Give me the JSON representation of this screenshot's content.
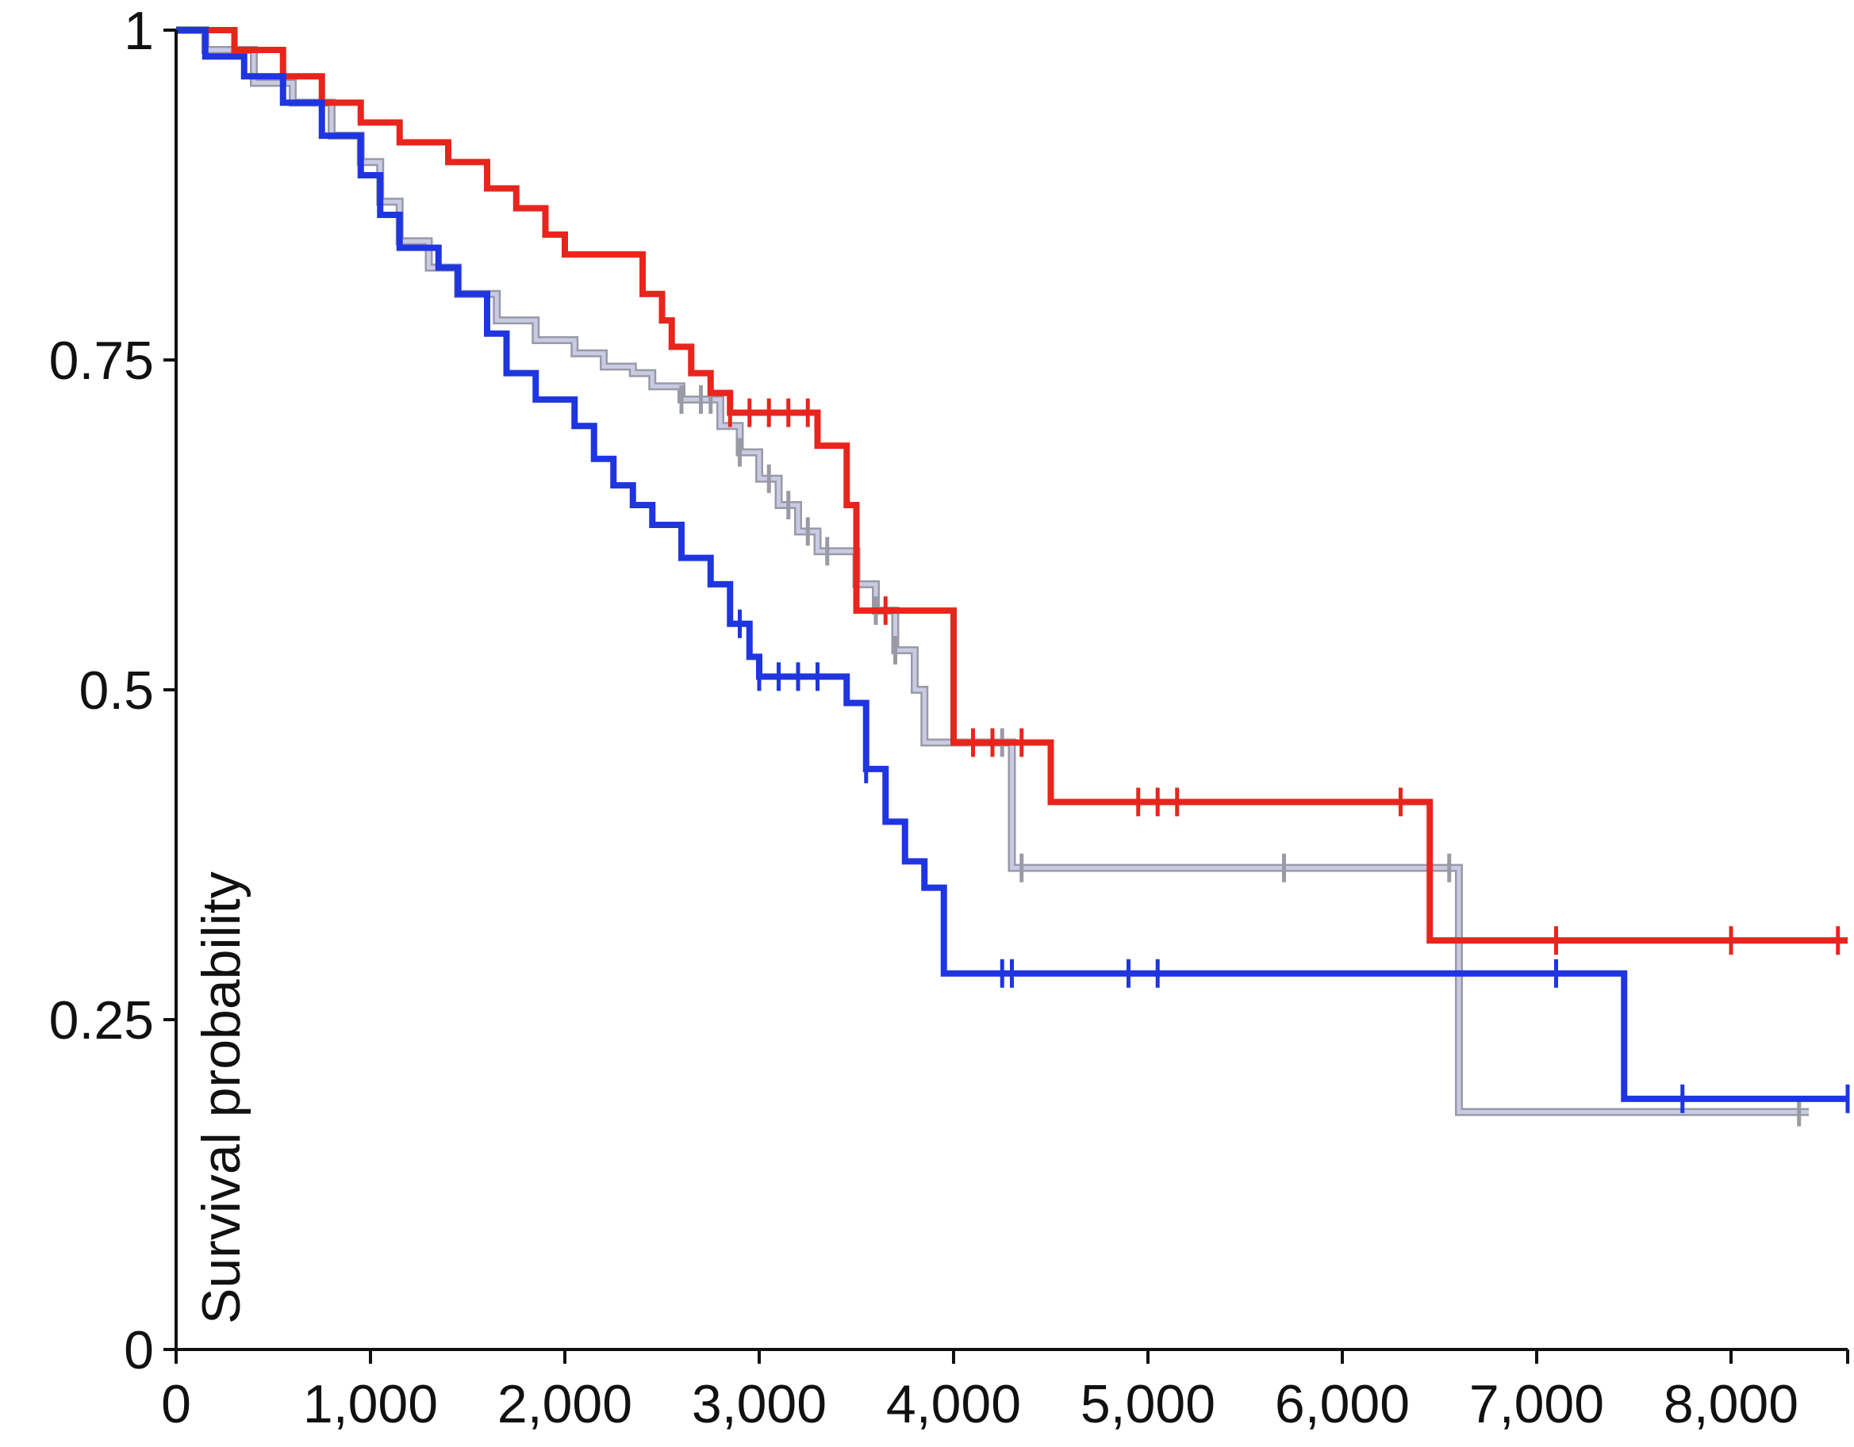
{
  "chart_data": {
    "type": "line",
    "title": "",
    "xlabel": "",
    "ylabel": "Survival probability",
    "xlim": [
      0,
      8600
    ],
    "ylim": [
      0,
      1
    ],
    "x_ticks": [
      0,
      1000,
      2000,
      3000,
      4000,
      5000,
      6000,
      7000,
      8000
    ],
    "x_tick_labels": [
      "0",
      "1,000",
      "2,000",
      "3,000",
      "4,000",
      "5,000",
      "6,000",
      "7,000",
      "8,000"
    ],
    "y_ticks": [
      0,
      0.25,
      0.5,
      0.75,
      1
    ],
    "y_tick_labels": [
      "0",
      "0.25",
      "0.5",
      "0.75",
      "1"
    ],
    "grid": false,
    "legend": "none",
    "series": [
      {
        "color": "#c8cbe3",
        "points": [
          [
            0,
            1
          ],
          [
            150,
            0.985
          ],
          [
            400,
            0.96
          ],
          [
            600,
            0.945
          ],
          [
            800,
            0.92
          ],
          [
            950,
            0.9
          ],
          [
            1050,
            0.87
          ],
          [
            1150,
            0.84
          ],
          [
            1300,
            0.82
          ],
          [
            1450,
            0.8
          ],
          [
            1650,
            0.78
          ],
          [
            1850,
            0.765
          ],
          [
            2050,
            0.755
          ],
          [
            2200,
            0.745
          ],
          [
            2350,
            0.74
          ],
          [
            2450,
            0.73
          ],
          [
            2600,
            0.72
          ],
          [
            2800,
            0.7
          ],
          [
            2900,
            0.68
          ],
          [
            3000,
            0.66
          ],
          [
            3100,
            0.64
          ],
          [
            3200,
            0.62
          ],
          [
            3300,
            0.605
          ],
          [
            3450,
            0.605
          ],
          [
            3500,
            0.58
          ],
          [
            3600,
            0.56
          ],
          [
            3700,
            0.53
          ],
          [
            3800,
            0.5
          ],
          [
            3850,
            0.46
          ],
          [
            4250,
            0.46
          ],
          [
            4300,
            0.365
          ],
          [
            6600,
            0.365
          ],
          [
            6600,
            0.18
          ],
          [
            8400,
            0.18
          ]
        ],
        "censor_x": [
          2600,
          2700,
          2750,
          2900,
          3050,
          3150,
          3250,
          3350,
          3600,
          3700,
          4250,
          4350,
          5700,
          6550,
          8350
        ]
      },
      {
        "color": "#e8251d",
        "points": [
          [
            0,
            1
          ],
          [
            300,
            0.985
          ],
          [
            550,
            0.965
          ],
          [
            750,
            0.945
          ],
          [
            950,
            0.93
          ],
          [
            1150,
            0.915
          ],
          [
            1400,
            0.9
          ],
          [
            1600,
            0.88
          ],
          [
            1750,
            0.865
          ],
          [
            1900,
            0.845
          ],
          [
            2000,
            0.83
          ],
          [
            2350,
            0.83
          ],
          [
            2400,
            0.8
          ],
          [
            2500,
            0.78
          ],
          [
            2550,
            0.76
          ],
          [
            2650,
            0.74
          ],
          [
            2750,
            0.725
          ],
          [
            2850,
            0.71
          ],
          [
            3250,
            0.71
          ],
          [
            3300,
            0.685
          ],
          [
            3400,
            0.685
          ],
          [
            3450,
            0.64
          ],
          [
            3500,
            0.56
          ],
          [
            3950,
            0.56
          ],
          [
            4000,
            0.46
          ],
          [
            4450,
            0.46
          ],
          [
            4500,
            0.415
          ],
          [
            6450,
            0.415
          ],
          [
            6450,
            0.31
          ],
          [
            8600,
            0.31
          ]
        ],
        "censor_x": [
          2850,
          2950,
          3050,
          3150,
          3250,
          3650,
          4100,
          4200,
          4350,
          4950,
          5050,
          5150,
          6300,
          7100,
          8000,
          8550
        ]
      },
      {
        "color": "#1f35e0",
        "points": [
          [
            0,
            1
          ],
          [
            150,
            0.98
          ],
          [
            350,
            0.965
          ],
          [
            550,
            0.945
          ],
          [
            750,
            0.92
          ],
          [
            950,
            0.89
          ],
          [
            1050,
            0.86
          ],
          [
            1150,
            0.835
          ],
          [
            1350,
            0.82
          ],
          [
            1450,
            0.8
          ],
          [
            1600,
            0.77
          ],
          [
            1700,
            0.74
          ],
          [
            1850,
            0.72
          ],
          [
            2050,
            0.7
          ],
          [
            2150,
            0.675
          ],
          [
            2250,
            0.655
          ],
          [
            2350,
            0.64
          ],
          [
            2450,
            0.625
          ],
          [
            2600,
            0.6
          ],
          [
            2750,
            0.58
          ],
          [
            2850,
            0.55
          ],
          [
            2950,
            0.525
          ],
          [
            3000,
            0.51
          ],
          [
            3400,
            0.51
          ],
          [
            3450,
            0.49
          ],
          [
            3550,
            0.44
          ],
          [
            3650,
            0.4
          ],
          [
            3750,
            0.37
          ],
          [
            3850,
            0.35
          ],
          [
            3950,
            0.285
          ],
          [
            7450,
            0.285
          ],
          [
            7450,
            0.19
          ],
          [
            8600,
            0.19
          ]
        ],
        "censor_x": [
          2900,
          3000,
          3100,
          3200,
          3300,
          3550,
          4250,
          4300,
          4900,
          5050,
          7100,
          7750,
          8600
        ]
      }
    ]
  }
}
